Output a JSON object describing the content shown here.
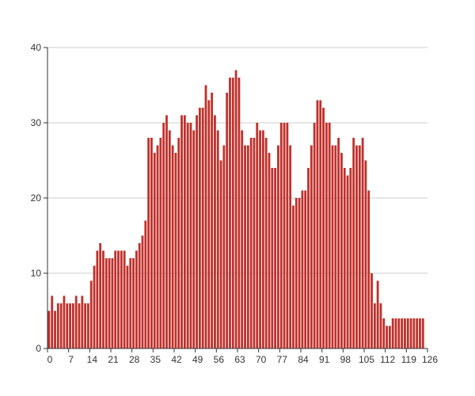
{
  "chart_data": {
    "type": "bar",
    "title": "",
    "xlabel": "",
    "ylabel": "",
    "x_start": 0,
    "xlim": [
      0,
      126
    ],
    "ylim": [
      0,
      40
    ],
    "grid": true,
    "bar_color": "#c0302b",
    "x_ticks": [
      0,
      7,
      14,
      21,
      28,
      35,
      42,
      49,
      56,
      63,
      70,
      77,
      84,
      91,
      98,
      105,
      112,
      119,
      126
    ],
    "y_ticks": [
      0,
      10,
      20,
      30,
      40
    ],
    "values": [
      5,
      7,
      5,
      6,
      6,
      7,
      6,
      6,
      6,
      7,
      6,
      7,
      6,
      6,
      9,
      11,
      13,
      14,
      13,
      12,
      12,
      12,
      13,
      13,
      13,
      13,
      11,
      12,
      12,
      13,
      14,
      15,
      17,
      28,
      28,
      26,
      27,
      28,
      30,
      31,
      29,
      27,
      26,
      28,
      31,
      31,
      30,
      30,
      29,
      31,
      32,
      32,
      35,
      33,
      34,
      31,
      29,
      25,
      27,
      34,
      36,
      36,
      37,
      36,
      29,
      27,
      27,
      28,
      28,
      30,
      29,
      29,
      28,
      26,
      24,
      24,
      27,
      30,
      30,
      30,
      27,
      19,
      20,
      20,
      21,
      21,
      24,
      27,
      30,
      33,
      33,
      32,
      30,
      30,
      27,
      27,
      28,
      26,
      24,
      23,
      24,
      28,
      27,
      27,
      28,
      25,
      21,
      10,
      6,
      9,
      6,
      4,
      3,
      3,
      4,
      4,
      4,
      4,
      4,
      4,
      4,
      4,
      4,
      4,
      4
    ]
  }
}
